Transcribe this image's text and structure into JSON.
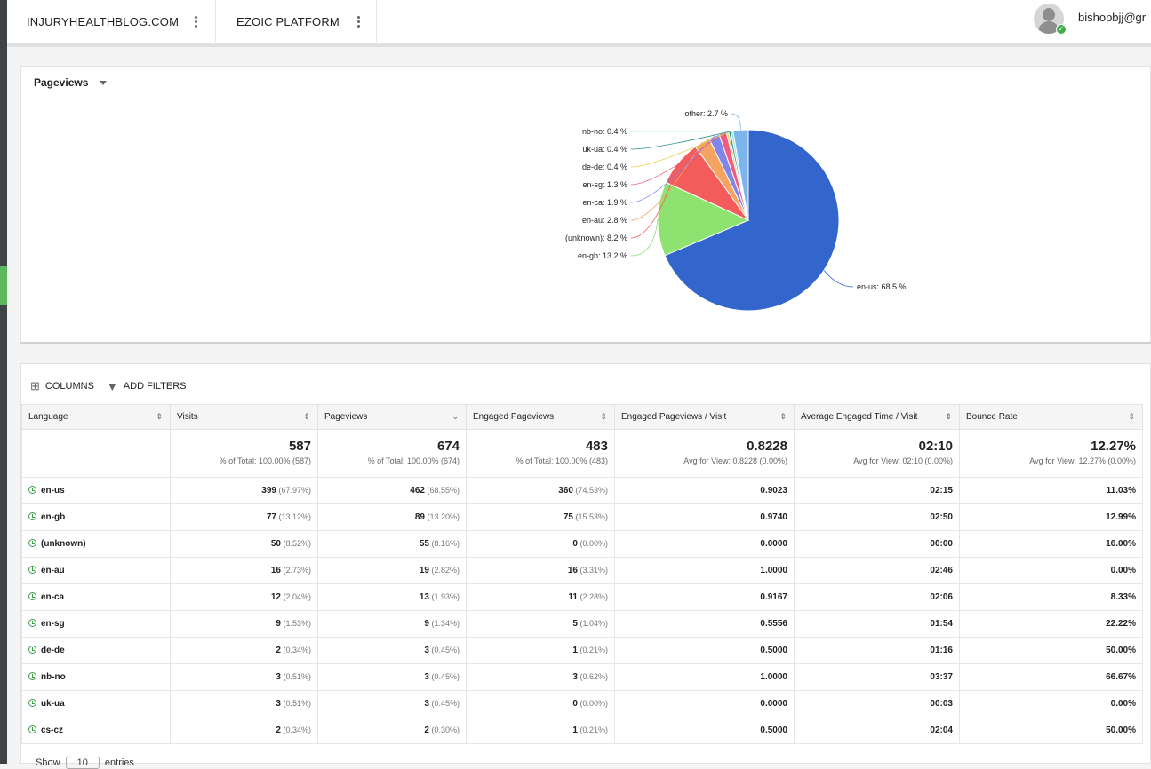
{
  "header": {
    "site_name": "INJURYHEALTHBLOG.COM",
    "platform_name": "EZOIC PLATFORM",
    "user": "bishopbjj@gr"
  },
  "chart_panel": {
    "metric_label": "Pageviews"
  },
  "chart_data": {
    "type": "pie",
    "slices": [
      {
        "label": "en-us: 68.5 %",
        "value": 68.5,
        "color": "#3366cc"
      },
      {
        "label": "en-gb: 13.2 %",
        "value": 13.2,
        "color": "#8ee26f"
      },
      {
        "label": "(unknown): 8.2 %",
        "value": 8.2,
        "color": "#f45b5b"
      },
      {
        "label": "en-au: 2.8 %",
        "value": 2.8,
        "color": "#f4a460"
      },
      {
        "label": "en-ca: 1.9 %",
        "value": 1.9,
        "color": "#8085e9"
      },
      {
        "label": "en-sg: 1.3 %",
        "value": 1.3,
        "color": "#f15c80"
      },
      {
        "label": "de-de: 0.4 %",
        "value": 0.4,
        "color": "#e4d354"
      },
      {
        "label": "uk-ua: 0.4 %",
        "value": 0.4,
        "color": "#2b908f"
      },
      {
        "label": "nb-no: 0.4 %",
        "value": 0.4,
        "color": "#91e8e1"
      },
      {
        "label": "other: 2.7 %",
        "value": 2.7,
        "color": "#7cb5ec"
      }
    ]
  },
  "toolbar": {
    "columns_label": "COLUMNS",
    "filters_label": "ADD FILTERS"
  },
  "table": {
    "columns": [
      "Language",
      "Visits",
      "Pageviews",
      "Engaged Pageviews",
      "Engaged Pageviews / Visit",
      "Average Engaged Time / Visit",
      "Bounce Rate"
    ],
    "totals": [
      {
        "value": "",
        "sub": ""
      },
      {
        "value": "587",
        "sub": "% of Total: 100.00% (587)"
      },
      {
        "value": "674",
        "sub": "% of Total: 100.00% (674)"
      },
      {
        "value": "483",
        "sub": "% of Total: 100.00% (483)"
      },
      {
        "value": "0.8228",
        "sub": "Avg for View: 0.8228 (0.00%)"
      },
      {
        "value": "02:10",
        "sub": "Avg for View: 02:10 (0.00%)"
      },
      {
        "value": "12.27%",
        "sub": "Avg for View: 12.27% (0.00%)"
      }
    ],
    "rows": [
      {
        "lang": "en-us",
        "visits": "399",
        "visits_pct": "(67.97%)",
        "pv": "462",
        "pv_pct": "(68.55%)",
        "epv": "360",
        "epv_pct": "(74.53%)",
        "epv_visit": "0.9023",
        "time": "02:15",
        "bounce": "11.03%"
      },
      {
        "lang": "en-gb",
        "visits": "77",
        "visits_pct": "(13.12%)",
        "pv": "89",
        "pv_pct": "(13.20%)",
        "epv": "75",
        "epv_pct": "(15.53%)",
        "epv_visit": "0.9740",
        "time": "02:50",
        "bounce": "12.99%"
      },
      {
        "lang": "(unknown)",
        "visits": "50",
        "visits_pct": "(8.52%)",
        "pv": "55",
        "pv_pct": "(8.16%)",
        "epv": "0",
        "epv_pct": "(0.00%)",
        "epv_visit": "0.0000",
        "time": "00:00",
        "bounce": "16.00%"
      },
      {
        "lang": "en-au",
        "visits": "16",
        "visits_pct": "(2.73%)",
        "pv": "19",
        "pv_pct": "(2.82%)",
        "epv": "16",
        "epv_pct": "(3.31%)",
        "epv_visit": "1.0000",
        "time": "02:46",
        "bounce": "0.00%"
      },
      {
        "lang": "en-ca",
        "visits": "12",
        "visits_pct": "(2.04%)",
        "pv": "13",
        "pv_pct": "(1.93%)",
        "epv": "11",
        "epv_pct": "(2.28%)",
        "epv_visit": "0.9167",
        "time": "02:06",
        "bounce": "8.33%"
      },
      {
        "lang": "en-sg",
        "visits": "9",
        "visits_pct": "(1.53%)",
        "pv": "9",
        "pv_pct": "(1.34%)",
        "epv": "5",
        "epv_pct": "(1.04%)",
        "epv_visit": "0.5556",
        "time": "01:54",
        "bounce": "22.22%"
      },
      {
        "lang": "de-de",
        "visits": "2",
        "visits_pct": "(0.34%)",
        "pv": "3",
        "pv_pct": "(0.45%)",
        "epv": "1",
        "epv_pct": "(0.21%)",
        "epv_visit": "0.5000",
        "time": "01:16",
        "bounce": "50.00%"
      },
      {
        "lang": "nb-no",
        "visits": "3",
        "visits_pct": "(0.51%)",
        "pv": "3",
        "pv_pct": "(0.45%)",
        "epv": "3",
        "epv_pct": "(0.62%)",
        "epv_visit": "1.0000",
        "time": "03:37",
        "bounce": "66.67%"
      },
      {
        "lang": "uk-ua",
        "visits": "3",
        "visits_pct": "(0.51%)",
        "pv": "3",
        "pv_pct": "(0.45%)",
        "epv": "0",
        "epv_pct": "(0.00%)",
        "epv_visit": "0.0000",
        "time": "00:03",
        "bounce": "0.00%"
      },
      {
        "lang": "cs-cz",
        "visits": "2",
        "visits_pct": "(0.34%)",
        "pv": "2",
        "pv_pct": "(0.30%)",
        "epv": "1",
        "epv_pct": "(0.21%)",
        "epv_visit": "0.5000",
        "time": "02:04",
        "bounce": "50.00%"
      }
    ]
  },
  "footer": {
    "show_label": "Show",
    "entries_value": "10",
    "entries_label": "entries"
  }
}
